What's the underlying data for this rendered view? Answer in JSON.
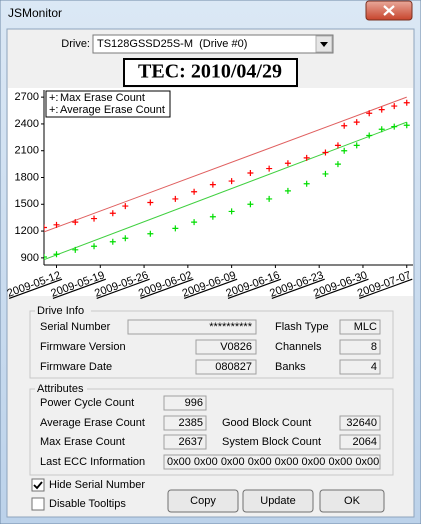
{
  "window": {
    "title": "JSMonitor"
  },
  "drive": {
    "label": "Drive:",
    "selected": "TS128GSSD25S-M  (Drive #0)"
  },
  "tec": "TEC: 2010/04/29",
  "chart_data": {
    "type": "scatter",
    "x": [
      "2009-05-10",
      "2009-05-12",
      "2009-05-15",
      "2009-05-18",
      "2009-05-21",
      "2009-05-23",
      "2009-05-27",
      "2009-05-31",
      "2009-06-03",
      "2009-06-06",
      "2009-06-09",
      "2009-06-12",
      "2009-06-15",
      "2009-06-18",
      "2009-06-21",
      "2009-06-24",
      "2009-06-26",
      "2009-06-27",
      "2009-06-29",
      "2009-07-01",
      "2009-07-03",
      "2009-07-05",
      "2009-07-07"
    ],
    "series": [
      {
        "name": "Max Erase Count",
        "color": "#ff0000",
        "values": [
          1240,
          1270,
          1300,
          1340,
          1400,
          1480,
          1520,
          1560,
          1640,
          1720,
          1760,
          1850,
          1900,
          1960,
          2020,
          2080,
          2160,
          2380,
          2420,
          2520,
          2560,
          2600,
          2637
        ]
      },
      {
        "name": "Average Erase Count",
        "color": "#00dd00",
        "values": [
          910,
          940,
          990,
          1030,
          1080,
          1120,
          1170,
          1230,
          1300,
          1360,
          1420,
          1500,
          1560,
          1650,
          1730,
          1840,
          1950,
          2100,
          2160,
          2270,
          2340,
          2370,
          2385
        ]
      }
    ],
    "trend_lines": [
      {
        "color": "#e06060",
        "x": [
          "2009-05-10",
          "2009-07-07"
        ],
        "values": [
          1190,
          2700
        ]
      },
      {
        "color": "#40d040",
        "x": [
          "2009-05-10",
          "2009-07-07"
        ],
        "values": [
          880,
          2420
        ]
      }
    ],
    "legend_marker": "+:",
    "legend": "top-left",
    "xlim": [
      "2009-05-10",
      "2009-07-08"
    ],
    "xticks": [
      "2009-05-12",
      "2009-05-19",
      "2009-05-26",
      "2009-06-02",
      "2009-06-09",
      "2009-06-16",
      "2009-06-23",
      "2009-06-30",
      "2009-07-07"
    ],
    "ylim": [
      820,
      2780
    ],
    "yticks": [
      900,
      1200,
      1500,
      1800,
      2100,
      2400,
      2700
    ]
  },
  "drive_info": {
    "title": "Drive Info",
    "serial_number": {
      "label": "Serial Number",
      "value": "**********"
    },
    "firmware_version": {
      "label": "Firmware Version",
      "value": "V0826"
    },
    "firmware_date": {
      "label": "Firmware Date",
      "value": "080827"
    },
    "flash_type": {
      "label": "Flash Type",
      "value": "MLC"
    },
    "channels": {
      "label": "Channels",
      "value": "8"
    },
    "banks": {
      "label": "Banks",
      "value": "4"
    }
  },
  "attributes": {
    "title": "Attributes",
    "power_cycle_count": {
      "label": "Power Cycle Count",
      "value": "996"
    },
    "average_erase_count": {
      "label": "Average Erase Count",
      "value": "2385"
    },
    "max_erase_count": {
      "label": "Max Erase Count",
      "value": "2637"
    },
    "good_block_count": {
      "label": "Good Block Count",
      "value": "32640"
    },
    "system_block_count": {
      "label": "System Block Count",
      "value": "2064"
    },
    "last_ecc_information": {
      "label": "Last ECC Information",
      "value": "0x00 0x00 0x00 0x00 0x00 0x00 0x00 0x00"
    }
  },
  "options": [
    {
      "label": "Hide Serial Number",
      "checked": true
    },
    {
      "label": "Disable Tooltips",
      "checked": false
    }
  ],
  "buttons": [
    "Copy",
    "Update",
    "OK"
  ]
}
